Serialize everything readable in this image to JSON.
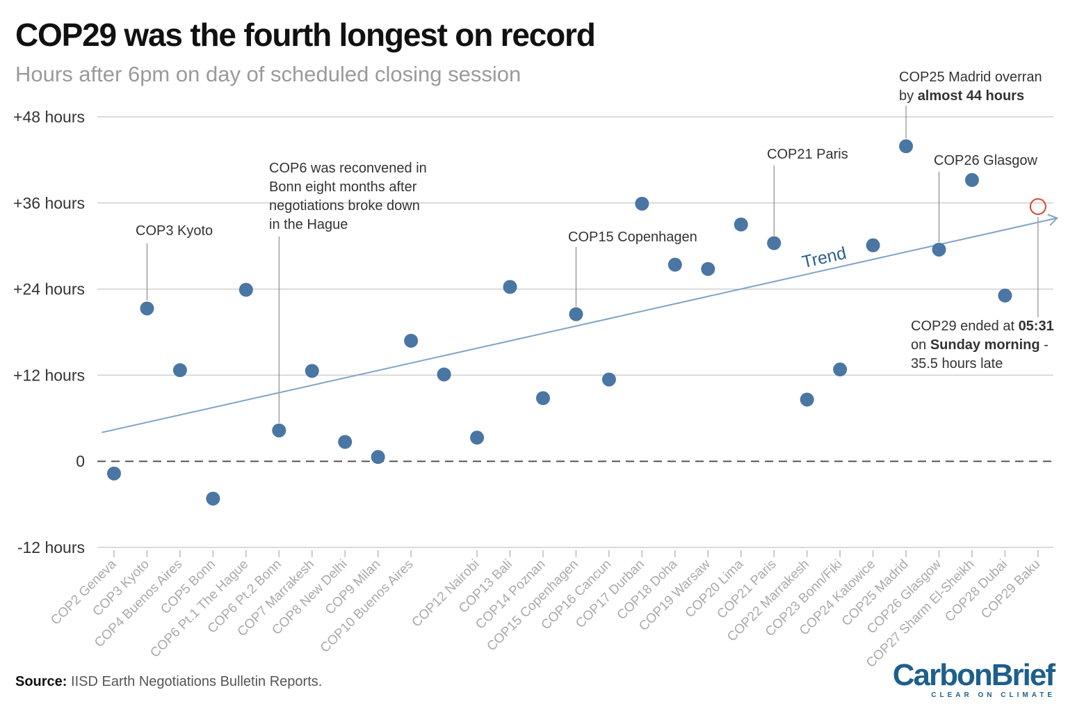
{
  "chart_data": {
    "type": "scatter",
    "title": "COP29 was the fourth longest on record",
    "subtitle": "Hours after 6pm on day of scheduled closing session",
    "categories": [
      "COP2 Geneva",
      "COP3 Kyoto",
      "COP4 Buenos Aires",
      "COP5 Bonn",
      "COP6 Pt.1 The Hague",
      "COP6 Pt.2 Bonn",
      "COP7 Marrakesh",
      "COP8 New Delhi",
      "COP9 Milan",
      "COP10 Buenos Aires",
      null,
      "COP12 Nairobi",
      "COP13 Bali",
      "COP14 Poznan",
      "COP15 Copenhagen",
      "COP16 Cancun",
      "COP17 Durban",
      "COP18 Doha",
      "COP19 Warsaw",
      "COP20 Lima",
      "COP21 Paris",
      "COP22 Marrakesh",
      "COP23 Bonn/Fiki",
      "COP24 Katowice",
      "COP25 Madrid",
      "COP26 Glasgow",
      "COP27 Sharm El-Sheikh",
      "COP28 Dubai",
      "COP29 Baku"
    ],
    "series": [
      {
        "color": "#4a76a4",
        "values": [
          -1.7,
          21.3,
          12.7,
          -5.2,
          23.9,
          4.3,
          12.6,
          2.7,
          0.6,
          16.8,
          12.1,
          3.3,
          24.3,
          8.8,
          20.5,
          11.4,
          35.9,
          27.4,
          26.8,
          33.0,
          30.4,
          8.6,
          12.8,
          30.1,
          43.9,
          29.5,
          39.2,
          23.1,
          null
        ]
      },
      {
        "color": "#d9452e",
        "values": [
          null,
          null,
          null,
          null,
          null,
          null,
          null,
          null,
          null,
          null,
          null,
          null,
          null,
          null,
          null,
          null,
          null,
          null,
          null,
          null,
          null,
          null,
          null,
          null,
          null,
          null,
          null,
          null,
          35.5
        ]
      }
    ],
    "trend": {
      "label": "Trend",
      "color": "#7fa3c6",
      "values": [
        4.4,
        null,
        null,
        null,
        null,
        null,
        null,
        null,
        null,
        null,
        null,
        null,
        null,
        null,
        null,
        null,
        null,
        null,
        null,
        null,
        null,
        null,
        null,
        null,
        null,
        null,
        null,
        null,
        33.3
      ]
    },
    "ylim": [
      -12,
      48
    ],
    "yticks": [
      {
        "value": -12,
        "label": "-12 hours"
      },
      0,
      {
        "value": 12,
        "label": "+12 hours"
      },
      {
        "value": 24,
        "label": "+24 hours"
      },
      {
        "value": 36,
        "label": "+36 hours"
      },
      {
        "value": 48,
        "label": "+48 hours"
      }
    ],
    "grid": true,
    "annotations": [
      {
        "lines": [
          [
            {
              "text": "COP3 Kyoto"
            }
          ]
        ]
      },
      {
        "lines": [
          [
            {
              "text": "COP6 was reconvened in"
            }
          ],
          [
            {
              "text": "Bonn eight months after"
            }
          ],
          [
            {
              "text": "negotiations broke down"
            }
          ],
          [
            {
              "text": "in the Hague"
            }
          ]
        ]
      },
      {
        "lines": [
          [
            {
              "text": "COP15 Copenhagen"
            }
          ]
        ]
      },
      {
        "lines": [
          [
            {
              "text": "COP21 Paris"
            }
          ]
        ]
      },
      {
        "lines": [
          [
            {
              "text": "COP25 Madrid overran"
            }
          ],
          [
            {
              "text": "by "
            },
            {
              "text": "almost 44 hours",
              "bold": true
            }
          ]
        ]
      },
      {
        "lines": [
          [
            {
              "text": "COP26 Glasgow"
            }
          ]
        ]
      },
      {
        "lines": [
          [
            {
              "text": "COP29 ended at "
            },
            {
              "text": "05:31",
              "bold": true
            }
          ],
          [
            {
              "text": "on "
            },
            {
              "text": "Sunday morning",
              "bold": true
            },
            {
              "text": " -"
            }
          ],
          [
            {
              "text": "35.5 hours late"
            }
          ]
        ]
      }
    ],
    "source": [
      {
        "text": "Source:",
        "bold": true
      },
      {
        "text": " IISD Earth Negotiations Bulletin Reports."
      }
    ],
    "logo": {
      "name": "CarbonBrief",
      "tagline": "CLEAR ON CLIMATE"
    }
  }
}
